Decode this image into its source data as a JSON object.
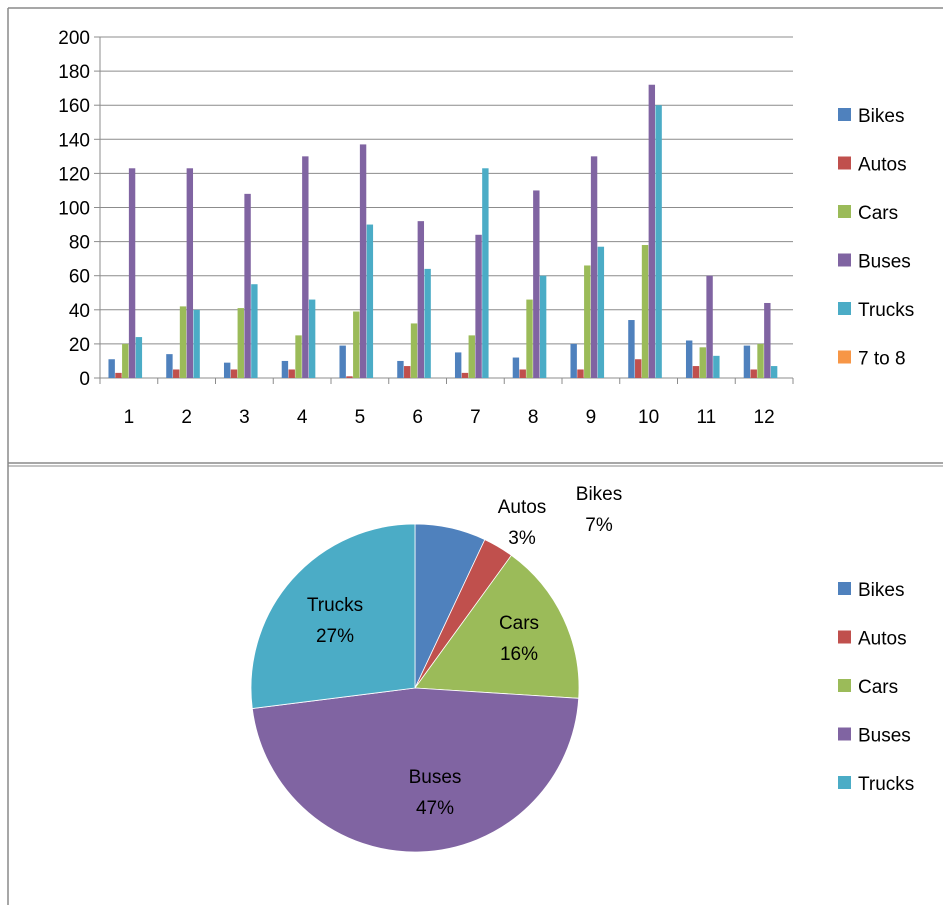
{
  "chart_data": [
    {
      "type": "bar",
      "categories": [
        "1",
        "2",
        "3",
        "4",
        "5",
        "6",
        "7",
        "8",
        "9",
        "10",
        "11",
        "12"
      ],
      "yticks": [
        "0",
        "20",
        "40",
        "60",
        "80",
        "100",
        "120",
        "140",
        "160",
        "180",
        "200"
      ],
      "ylim": [
        0,
        200
      ],
      "grid": true,
      "legend_position": "right",
      "series": [
        {
          "name": "Bikes",
          "color": "#4f81bd",
          "values": [
            11,
            14,
            9,
            10,
            19,
            10,
            15,
            12,
            20,
            34,
            22,
            19
          ]
        },
        {
          "name": "Autos",
          "color": "#c0504d",
          "values": [
            3,
            5,
            5,
            5,
            1,
            7,
            3,
            5,
            5,
            11,
            7,
            5
          ]
        },
        {
          "name": "Cars",
          "color": "#9bbb59",
          "values": [
            20,
            42,
            41,
            25,
            39,
            32,
            25,
            46,
            66,
            78,
            18,
            20
          ]
        },
        {
          "name": "Buses",
          "color": "#8064a2",
          "values": [
            123,
            123,
            108,
            130,
            137,
            92,
            84,
            110,
            130,
            172,
            60,
            44
          ]
        },
        {
          "name": "Trucks",
          "color": "#4bacc6",
          "values": [
            24,
            40,
            55,
            46,
            90,
            64,
            123,
            60,
            77,
            160,
            13,
            7
          ]
        },
        {
          "name": "7 to 8",
          "color": "#f79646",
          "values": [
            0,
            0,
            0,
            0,
            0,
            0,
            0,
            0,
            0,
            0,
            0,
            0
          ]
        }
      ]
    },
    {
      "type": "pie",
      "legend_position": "right",
      "slices": [
        {
          "name": "Bikes",
          "value": 7,
          "label": "7%",
          "color": "#4f81bd"
        },
        {
          "name": "Autos",
          "value": 3,
          "label": "3%",
          "color": "#c0504d"
        },
        {
          "name": "Cars",
          "value": 16,
          "label": "16%",
          "color": "#9bbb59"
        },
        {
          "name": "Buses",
          "value": 47,
          "label": "47%",
          "color": "#8064a2"
        },
        {
          "name": "Trucks",
          "value": 27,
          "label": "27%",
          "color": "#4bacc6"
        }
      ]
    }
  ]
}
